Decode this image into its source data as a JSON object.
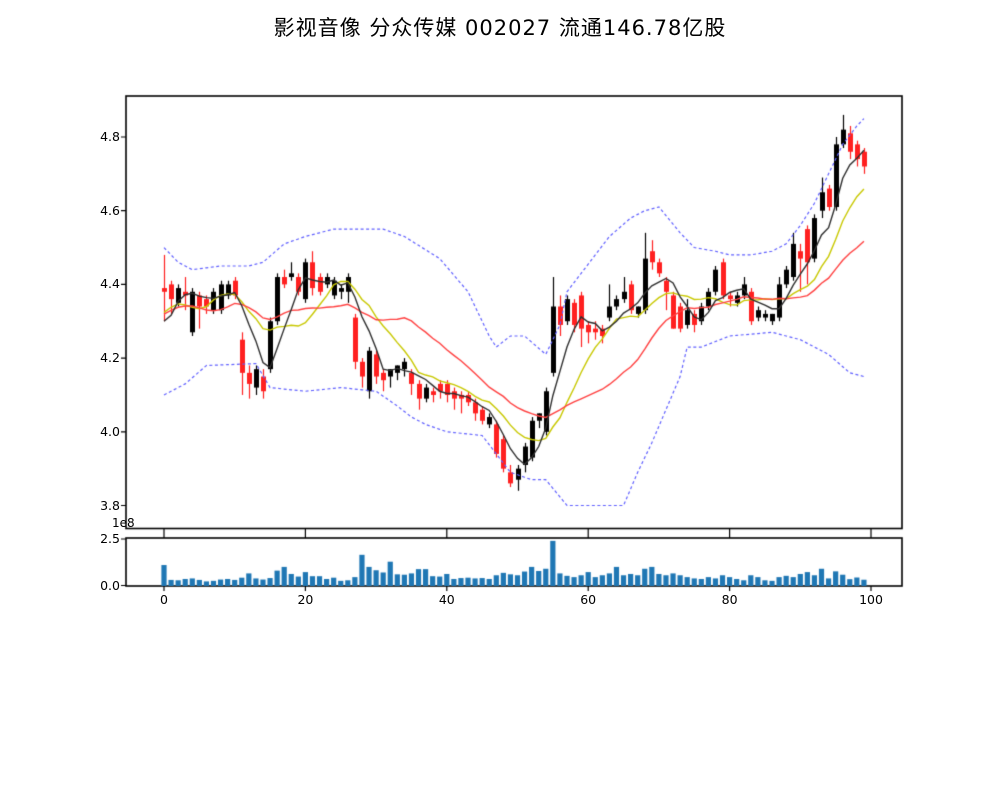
{
  "title": "影视音像 分众传媒 002027 流通146.78亿股",
  "chart_data": {
    "type": "candlestick_with_volume",
    "stock": {
      "sector": "影视音像",
      "name": "分众传媒",
      "code": "002027",
      "float_shares_label": "流通146.78亿股"
    },
    "price_axis": {
      "tick_labels": [
        "4.8",
        "4.6",
        "4.4",
        "4.2",
        "4.0",
        "3.8"
      ],
      "tick_values": [
        4.8,
        4.6,
        4.4,
        4.2,
        4.0,
        3.8
      ],
      "ylim": [
        3.74,
        4.91
      ]
    },
    "x_axis": {
      "tick_labels": [
        "0",
        "20",
        "40",
        "60",
        "80",
        "100"
      ],
      "tick_values": [
        0,
        20,
        40,
        60,
        80,
        100
      ],
      "xlim": [
        -5.4,
        104.4
      ]
    },
    "volume_axis": {
      "tick_labels": [
        "2.5",
        "0.0"
      ],
      "tick_values": [
        2.5,
        0.0
      ],
      "unit_label": "1e8",
      "ylim": [
        0,
        2.55
      ]
    },
    "ohlc": [
      [
        4.39,
        4.48,
        4.3,
        4.38
      ],
      [
        4.4,
        4.41,
        4.32,
        4.36
      ],
      [
        4.35,
        4.4,
        4.34,
        4.39
      ],
      [
        4.38,
        4.42,
        4.33,
        4.37
      ],
      [
        4.27,
        4.39,
        4.26,
        4.38
      ],
      [
        4.37,
        4.38,
        4.28,
        4.34
      ],
      [
        4.36,
        4.37,
        4.32,
        4.34
      ],
      [
        4.33,
        4.39,
        4.32,
        4.38
      ],
      [
        4.33,
        4.41,
        4.32,
        4.4
      ],
      [
        4.37,
        4.41,
        4.36,
        4.4
      ],
      [
        4.41,
        4.42,
        4.36,
        4.37
      ],
      [
        4.25,
        4.27,
        4.1,
        4.16
      ],
      [
        4.16,
        4.18,
        4.09,
        4.13
      ],
      [
        4.12,
        4.18,
        4.1,
        4.17
      ],
      [
        4.15,
        4.17,
        4.09,
        4.11
      ],
      [
        4.17,
        4.31,
        4.16,
        4.3
      ],
      [
        4.3,
        4.43,
        4.29,
        4.42
      ],
      [
        4.42,
        4.44,
        4.39,
        4.4
      ],
      [
        4.42,
        4.46,
        4.41,
        4.43
      ],
      [
        4.42,
        4.43,
        4.37,
        4.38
      ],
      [
        4.36,
        4.47,
        4.35,
        4.46
      ],
      [
        4.46,
        4.49,
        4.37,
        4.39
      ],
      [
        4.42,
        4.43,
        4.37,
        4.38
      ],
      [
        4.4,
        4.43,
        4.39,
        4.42
      ],
      [
        4.37,
        4.42,
        4.36,
        4.41
      ],
      [
        4.38,
        4.4,
        4.36,
        4.39
      ],
      [
        4.38,
        4.43,
        4.35,
        4.42
      ],
      [
        4.31,
        4.32,
        4.17,
        4.19
      ],
      [
        4.19,
        4.2,
        4.12,
        4.15
      ],
      [
        4.11,
        4.23,
        4.09,
        4.22
      ],
      [
        4.21,
        4.22,
        4.13,
        4.15
      ],
      [
        4.16,
        4.17,
        4.11,
        4.14
      ],
      [
        4.15,
        4.17,
        4.12,
        4.17
      ],
      [
        4.16,
        4.18,
        4.14,
        4.18
      ],
      [
        4.17,
        4.2,
        4.15,
        4.19
      ],
      [
        4.16,
        4.17,
        4.1,
        4.13
      ],
      [
        4.13,
        4.14,
        4.06,
        4.09
      ],
      [
        4.09,
        4.13,
        4.08,
        4.12
      ],
      [
        4.11,
        4.12,
        4.08,
        4.1
      ],
      [
        4.13,
        4.14,
        4.09,
        4.11
      ],
      [
        4.13,
        4.14,
        4.08,
        4.1
      ],
      [
        4.11,
        4.12,
        4.06,
        4.09
      ],
      [
        4.1,
        4.11,
        4.05,
        4.09
      ],
      [
        4.1,
        4.11,
        4.07,
        4.08
      ],
      [
        4.08,
        4.09,
        4.03,
        4.05
      ],
      [
        4.06,
        4.07,
        4.02,
        4.03
      ],
      [
        4.02,
        4.05,
        4.01,
        4.04
      ],
      [
        4.02,
        4.03,
        3.93,
        3.94
      ],
      [
        3.98,
        3.99,
        3.89,
        3.9
      ],
      [
        3.89,
        3.91,
        3.85,
        3.86
      ],
      [
        3.87,
        3.91,
        3.84,
        3.9
      ],
      [
        3.91,
        3.97,
        3.89,
        3.96
      ],
      [
        3.93,
        4.04,
        3.92,
        4.03
      ],
      [
        4.03,
        4.05,
        4.01,
        4.05
      ],
      [
        4.0,
        4.12,
        3.99,
        4.11
      ],
      [
        4.16,
        4.42,
        4.15,
        4.34
      ],
      [
        4.34,
        4.37,
        4.26,
        4.29
      ],
      [
        4.3,
        4.37,
        4.29,
        4.36
      ],
      [
        4.35,
        4.36,
        4.27,
        4.29
      ],
      [
        4.37,
        4.38,
        4.23,
        4.28
      ],
      [
        4.29,
        4.3,
        4.24,
        4.27
      ],
      [
        4.28,
        4.3,
        4.25,
        4.27
      ],
      [
        4.28,
        4.29,
        4.24,
        4.26
      ],
      [
        4.31,
        4.4,
        4.3,
        4.34
      ],
      [
        4.34,
        4.37,
        4.33,
        4.36
      ],
      [
        4.36,
        4.42,
        4.35,
        4.38
      ],
      [
        4.4,
        4.41,
        4.32,
        4.33
      ],
      [
        4.32,
        4.34,
        4.31,
        4.34
      ],
      [
        4.33,
        4.54,
        4.32,
        4.47
      ],
      [
        4.49,
        4.52,
        4.44,
        4.46
      ],
      [
        4.46,
        4.47,
        4.42,
        4.43
      ],
      [
        4.41,
        4.42,
        4.33,
        4.38
      ],
      [
        4.37,
        4.38,
        4.28,
        4.28
      ],
      [
        4.34,
        4.35,
        4.27,
        4.28
      ],
      [
        4.29,
        4.36,
        4.28,
        4.33
      ],
      [
        4.32,
        4.33,
        4.27,
        4.29
      ],
      [
        4.3,
        4.35,
        4.29,
        4.34
      ],
      [
        4.34,
        4.39,
        4.33,
        4.38
      ],
      [
        4.38,
        4.45,
        4.37,
        4.44
      ],
      [
        4.46,
        4.47,
        4.36,
        4.37
      ],
      [
        4.37,
        4.38,
        4.34,
        4.36
      ],
      [
        4.35,
        4.38,
        4.34,
        4.37
      ],
      [
        4.37,
        4.42,
        4.36,
        4.4
      ],
      [
        4.38,
        4.39,
        4.29,
        4.3
      ],
      [
        4.31,
        4.34,
        4.3,
        4.33
      ],
      [
        4.31,
        4.33,
        4.3,
        4.32
      ],
      [
        4.3,
        4.32,
        4.29,
        4.32
      ],
      [
        4.31,
        4.42,
        4.3,
        4.4
      ],
      [
        4.4,
        4.45,
        4.39,
        4.44
      ],
      [
        4.42,
        4.54,
        4.41,
        4.51
      ],
      [
        4.49,
        4.51,
        4.38,
        4.47
      ],
      [
        4.55,
        4.56,
        4.4,
        4.46
      ],
      [
        4.47,
        4.59,
        4.46,
        4.58
      ],
      [
        4.6,
        4.69,
        4.58,
        4.65
      ],
      [
        4.66,
        4.67,
        4.6,
        4.61
      ],
      [
        4.61,
        4.8,
        4.6,
        4.78
      ],
      [
        4.78,
        4.86,
        4.77,
        4.82
      ],
      [
        4.81,
        4.83,
        4.74,
        4.76
      ],
      [
        4.78,
        4.79,
        4.72,
        4.74
      ],
      [
        4.76,
        4.77,
        4.7,
        4.72
      ]
    ],
    "volumes_1e8": [
      1.1,
      0.3,
      0.28,
      0.35,
      0.38,
      0.3,
      0.22,
      0.25,
      0.32,
      0.35,
      0.3,
      0.42,
      0.65,
      0.38,
      0.32,
      0.4,
      0.8,
      1.0,
      0.62,
      0.48,
      0.72,
      0.5,
      0.5,
      0.35,
      0.42,
      0.25,
      0.28,
      0.45,
      1.65,
      1.0,
      0.82,
      0.7,
      1.28,
      0.6,
      0.58,
      0.65,
      0.88,
      0.88,
      0.5,
      0.48,
      0.62,
      0.35,
      0.4,
      0.42,
      0.38,
      0.4,
      0.35,
      0.55,
      0.68,
      0.6,
      0.55,
      0.75,
      1.0,
      0.78,
      0.9,
      2.4,
      0.65,
      0.52,
      0.45,
      0.55,
      0.72,
      0.45,
      0.55,
      0.65,
      1.0,
      0.55,
      0.62,
      0.55,
      0.9,
      1.0,
      0.62,
      0.55,
      0.65,
      0.55,
      0.45,
      0.38,
      0.35,
      0.45,
      0.38,
      0.55,
      0.45,
      0.35,
      0.28,
      0.55,
      0.45,
      0.28,
      0.25,
      0.45,
      0.52,
      0.45,
      0.62,
      0.72,
      0.55,
      0.9,
      0.38,
      0.76,
      0.58,
      0.34,
      0.43,
      0.31
    ],
    "ma_periods": {
      "fast": 5,
      "mid": 10,
      "slow": 20
    },
    "ma_warmup_closes": [
      4.2,
      4.16,
      4.22,
      4.3,
      4.38,
      4.44,
      4.46,
      4.42,
      4.34,
      4.25,
      4.18,
      4.22,
      4.3,
      4.4,
      4.44,
      4.38,
      4.28,
      4.2,
      4.28,
      4.36
    ],
    "bands": {
      "upper": [
        [
          0,
          4.5
        ],
        [
          2,
          4.46
        ],
        [
          4,
          4.44
        ],
        [
          8,
          4.45
        ],
        [
          12,
          4.45
        ],
        [
          14,
          4.46
        ],
        [
          17,
          4.51
        ],
        [
          20,
          4.53
        ],
        [
          24,
          4.55
        ],
        [
          31,
          4.55
        ],
        [
          34,
          4.53
        ],
        [
          39,
          4.47
        ],
        [
          43,
          4.38
        ],
        [
          46,
          4.26
        ],
        [
          47,
          4.23
        ],
        [
          49,
          4.26
        ],
        [
          51,
          4.26
        ],
        [
          54,
          4.21
        ],
        [
          56,
          4.29
        ],
        [
          57,
          4.38
        ],
        [
          59,
          4.43
        ],
        [
          61,
          4.48
        ],
        [
          63,
          4.53
        ],
        [
          66,
          4.58
        ],
        [
          68,
          4.6
        ],
        [
          70,
          4.61
        ],
        [
          73,
          4.54
        ],
        [
          75,
          4.5
        ],
        [
          78,
          4.49
        ],
        [
          80,
          4.48
        ],
        [
          83,
          4.48
        ],
        [
          86,
          4.49
        ],
        [
          88,
          4.51
        ],
        [
          90,
          4.56
        ],
        [
          92,
          4.62
        ],
        [
          94,
          4.7
        ],
        [
          96,
          4.78
        ],
        [
          98,
          4.83
        ],
        [
          99,
          4.85
        ]
      ],
      "lower": [
        [
          0,
          4.1
        ],
        [
          3,
          4.13
        ],
        [
          6,
          4.18
        ],
        [
          13,
          4.185
        ],
        [
          15,
          4.12
        ],
        [
          20,
          4.11
        ],
        [
          25,
          4.12
        ],
        [
          30,
          4.11
        ],
        [
          33,
          4.07
        ],
        [
          35,
          4.04
        ],
        [
          37,
          4.02
        ],
        [
          40,
          4.0
        ],
        [
          45,
          3.99
        ],
        [
          47,
          3.94
        ],
        [
          49,
          3.89
        ],
        [
          52,
          3.87
        ],
        [
          54,
          3.87
        ],
        [
          57,
          3.8
        ],
        [
          65,
          3.8
        ],
        [
          67,
          3.89
        ],
        [
          69,
          3.97
        ],
        [
          71,
          4.06
        ],
        [
          73,
          4.15
        ],
        [
          74,
          4.23
        ],
        [
          76,
          4.23
        ],
        [
          80,
          4.26
        ],
        [
          86,
          4.27
        ],
        [
          90,
          4.25
        ],
        [
          94,
          4.21
        ],
        [
          97,
          4.16
        ],
        [
          99,
          4.15
        ]
      ]
    },
    "colors": {
      "up_candle": "#000000",
      "down_candle": "#ff2020",
      "ma_fast": "#2e2e2e",
      "ma_mid": "#c8c800",
      "ma_slow": "#ff4040",
      "band": "#6060ff",
      "volume_bar": "#1f77b4",
      "spine": "#000000",
      "background": "#ffffff"
    }
  }
}
